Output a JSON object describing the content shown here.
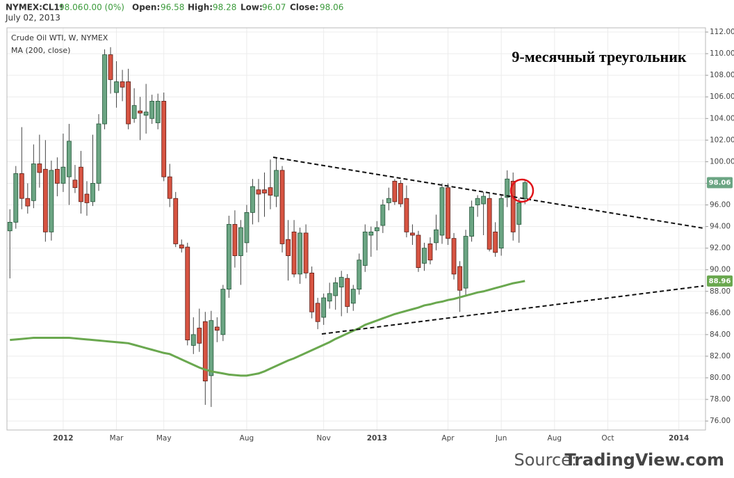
{
  "chart_data": {
    "type": "candlestick",
    "symbol": "NYMEX:CL1!",
    "change": "0.00 (0%)",
    "open_label": "Open:",
    "high_label": "High:",
    "low_label": "Low:",
    "close_label": "Close:",
    "date": "July 02, 2013",
    "title": "Crude Oil WTI, W, NYMEX",
    "annotation": "9-месячный треугольник",
    "source": "Source:",
    "source_site": "TradingView.com",
    "up_color": "#6ba583",
    "down_color": "#d75442",
    "grid": true,
    "ylim": [
      75.17,
      112.39
    ],
    "yticks": [
      {
        "value": 76,
        "label": "76.00"
      },
      {
        "value": 78,
        "label": "78.00"
      },
      {
        "value": 80,
        "label": "80.00"
      },
      {
        "value": 82,
        "label": "82.00"
      },
      {
        "value": 84,
        "label": "84.00"
      },
      {
        "value": 86,
        "label": "86.00"
      },
      {
        "value": 88,
        "label": "88.00"
      },
      {
        "value": 90,
        "label": "90.00"
      },
      {
        "value": 92,
        "label": "92.00"
      },
      {
        "value": 94,
        "label": "94.00"
      },
      {
        "value": 96,
        "label": "96.00"
      },
      {
        "value": 98,
        "label": "98.00"
      },
      {
        "value": 100,
        "label": "100.00"
      },
      {
        "value": 102,
        "label": "102.00"
      },
      {
        "value": 104,
        "label": "104.00"
      },
      {
        "value": 106,
        "label": "106.00"
      },
      {
        "value": 108,
        "label": "108.00"
      },
      {
        "value": 110,
        "label": "110.00"
      },
      {
        "value": 112,
        "label": "112.00"
      }
    ],
    "categories": [
      null,
      null,
      null,
      null,
      null,
      null,
      null,
      null,
      null,
      "2012",
      null,
      null,
      null,
      null,
      null,
      null,
      null,
      null,
      "Mar",
      null,
      null,
      null,
      null,
      null,
      null,
      null,
      "May",
      null,
      null,
      null,
      null,
      null,
      null,
      null,
      null,
      null,
      null,
      null,
      null,
      null,
      "Aug",
      null,
      null,
      null,
      null,
      null,
      null,
      null,
      null,
      null,
      null,
      null,
      null,
      "Nov",
      null,
      null,
      null,
      null,
      null,
      null,
      null,
      null,
      "2013",
      null,
      null,
      null,
      null,
      null,
      null,
      null,
      null,
      null,
      null,
      null,
      "Apr",
      null,
      null,
      null,
      null,
      null,
      null,
      null,
      null,
      "Jun",
      null,
      null,
      null,
      null,
      null,
      null,
      null,
      null,
      "Aug",
      null,
      null,
      null,
      null,
      null,
      null,
      null,
      null,
      "Oct",
      null,
      null,
      null,
      null,
      null,
      null,
      null,
      null,
      null,
      null,
      null,
      "2014",
      null,
      null,
      null,
      null
    ],
    "open": [
      93.6,
      94.4,
      98.9,
      96.6,
      96.4,
      99.8,
      99.3,
      93.5,
      99.3,
      98.0,
      98.6,
      98.3,
      99.5,
      97.0,
      96.3,
      98.0,
      103.5,
      109.9,
      106.4,
      107.4,
      107.4,
      104.0,
      104.7,
      104.3,
      104.0,
      103.6,
      105.6,
      98.6,
      96.6,
      92.3,
      92.1,
      83.0,
      84.6,
      85.2,
      80.2,
      84.7,
      84.0,
      88.2,
      94.2,
      91.3,
      92.5,
      95.3,
      97.4,
      97.4,
      97.6,
      96.8,
      99.2,
      92.8,
      93.5,
      89.6,
      93.4,
      89.7,
      86.9,
      85.6,
      87.1,
      87.6,
      88.4,
      89.2,
      86.9,
      88.2,
      90.4,
      93.2,
      93.6,
      94.1,
      96.2,
      98.2,
      98.0,
      96.6,
      93.4,
      93.2,
      90.6,
      92.4,
      92.5,
      93.2,
      97.6,
      92.9,
      90.3,
      88.3,
      93.1,
      96.0,
      96.1,
      96.6,
      93.5,
      92.0,
      96.7,
      98.2,
      94.2,
      96.58,
      null,
      null,
      null,
      null,
      null,
      null,
      null,
      null,
      null,
      null,
      null,
      null,
      null,
      null,
      null,
      null,
      null,
      null,
      null,
      null,
      null,
      null,
      null,
      null,
      null,
      null,
      null,
      null,
      null,
      null
    ],
    "high": [
      95.6,
      99.6,
      103.2,
      98.0,
      101.6,
      102.5,
      102.0,
      100.1,
      100.4,
      102.6,
      103.5,
      99.7,
      101.0,
      98.2,
      102.5,
      104.4,
      110.4,
      110.6,
      109.3,
      108.5,
      108.6,
      106.8,
      106.0,
      107.2,
      106.2,
      106.3,
      106.4,
      99.8,
      97.2,
      92.8,
      92.5,
      85.6,
      86.4,
      86.1,
      86.2,
      85.6,
      88.6,
      95.0,
      95.5,
      94.6,
      96.0,
      98.4,
      98.4,
      99.0,
      100.2,
      100.4,
      99.6,
      94.6,
      94.6,
      93.9,
      94.2,
      90.3,
      87.4,
      87.8,
      88.8,
      89.3,
      89.9,
      89.6,
      88.6,
      91.5,
      94.2,
      94.0,
      94.5,
      96.5,
      97.6,
      98.4,
      98.3,
      97.8,
      94.2,
      93.6,
      92.5,
      93.0,
      95.1,
      98.0,
      98.0,
      93.4,
      90.8,
      93.7,
      96.4,
      96.9,
      97.2,
      97.1,
      94.4,
      96.9,
      99.2,
      99.0,
      96.6,
      98.28,
      null,
      null,
      null,
      null,
      null,
      null,
      null,
      null,
      null,
      null,
      null,
      null,
      null,
      null,
      null,
      null,
      null,
      null,
      null,
      null,
      null,
      null,
      null,
      null,
      null,
      null,
      null,
      null,
      null,
      null
    ],
    "low": [
      89.2,
      93.8,
      95.6,
      95.2,
      95.7,
      97.6,
      92.6,
      92.7,
      96.8,
      97.2,
      96.0,
      97.1,
      95.2,
      95.0,
      95.9,
      97.3,
      103.0,
      106.3,
      105.0,
      105.6,
      103.0,
      103.6,
      102.0,
      102.6,
      103.5,
      103.0,
      98.2,
      95.8,
      92.1,
      91.6,
      83.0,
      82.2,
      82.4,
      77.5,
      77.3,
      83.3,
      83.4,
      87.4,
      90.2,
      88.6,
      91.6,
      94.2,
      94.4,
      94.9,
      95.6,
      95.8,
      91.6,
      89.0,
      89.3,
      88.7,
      89.2,
      85.5,
      84.5,
      84.9,
      86.4,
      86.3,
      85.7,
      86.0,
      86.2,
      87.7,
      89.8,
      91.2,
      91.8,
      93.4,
      95.5,
      96.0,
      95.8,
      93.0,
      92.3,
      89.8,
      89.9,
      90.5,
      91.8,
      92.4,
      92.3,
      89.1,
      86.1,
      87.5,
      92.6,
      94.9,
      93.2,
      91.7,
      91.2,
      91.3,
      95.8,
      92.7,
      92.5,
      96.07,
      null,
      null,
      null,
      null,
      null,
      null,
      null,
      null,
      null,
      null,
      null,
      null,
      null,
      null,
      null,
      null,
      null,
      null,
      null,
      null,
      null,
      null,
      null,
      null,
      null,
      null,
      null,
      null,
      null,
      null
    ],
    "close": [
      94.4,
      98.9,
      96.6,
      95.9,
      99.8,
      99.0,
      93.5,
      99.2,
      98.0,
      99.5,
      101.9,
      97.6,
      96.3,
      96.2,
      98.0,
      103.5,
      109.9,
      107.6,
      107.4,
      106.9,
      103.5,
      105.2,
      104.5,
      104.6,
      105.6,
      105.6,
      98.6,
      96.6,
      92.4,
      92.0,
      83.5,
      84.0,
      83.2,
      79.7,
      85.3,
      84.4,
      88.2,
      94.2,
      91.3,
      93.9,
      95.3,
      97.7,
      97.0,
      97.1,
      96.9,
      99.2,
      92.4,
      91.3,
      89.6,
      93.4,
      89.7,
      86.1,
      85.2,
      87.4,
      87.8,
      88.8,
      89.3,
      86.6,
      88.2,
      90.9,
      93.5,
      93.5,
      93.9,
      96.0,
      96.6,
      96.3,
      96.1,
      93.5,
      93.2,
      90.2,
      92.0,
      90.9,
      93.7,
      97.6,
      92.9,
      89.6,
      88.1,
      93.1,
      95.8,
      96.6,
      96.8,
      91.9,
      91.6,
      96.6,
      98.4,
      93.5,
      96.2,
      98.06,
      null,
      null,
      null,
      null,
      null,
      null,
      null,
      null,
      null,
      null,
      null,
      null,
      null,
      null,
      null,
      null,
      null,
      null,
      null,
      null,
      null,
      null,
      null,
      null,
      null,
      null,
      null,
      null,
      null,
      null
    ],
    "ma": {
      "name": "MA (200, close)",
      "color": "#6aa84f",
      "values": [
        83.5,
        83.55,
        83.6,
        83.65,
        83.7,
        83.7,
        83.7,
        83.7,
        83.7,
        83.7,
        83.7,
        83.65,
        83.6,
        83.55,
        83.5,
        83.45,
        83.4,
        83.35,
        83.3,
        83.25,
        83.2,
        83.05,
        82.9,
        82.75,
        82.6,
        82.45,
        82.3,
        82.2,
        81.95,
        81.7,
        81.45,
        81.2,
        80.95,
        80.75,
        80.6,
        80.5,
        80.4,
        80.3,
        80.25,
        80.2,
        80.2,
        80.3,
        80.4,
        80.6,
        80.85,
        81.1,
        81.35,
        81.6,
        81.8,
        82.05,
        82.3,
        82.55,
        82.8,
        83.05,
        83.3,
        83.6,
        83.85,
        84.1,
        84.35,
        84.6,
        84.9,
        85.1,
        85.3,
        85.5,
        85.7,
        85.9,
        86.05,
        86.2,
        86.35,
        86.5,
        86.7,
        86.8,
        86.95,
        87.05,
        87.2,
        87.3,
        87.45,
        87.6,
        87.75,
        87.9,
        88.0,
        88.15,
        88.3,
        88.45,
        88.6,
        88.75,
        88.85,
        88.96,
        null,
        null,
        null,
        null,
        null,
        null,
        null,
        null,
        null,
        null,
        null,
        null,
        null,
        null,
        null,
        null,
        null,
        null,
        null,
        null,
        null,
        null,
        null,
        null,
        null,
        null,
        null,
        null,
        null,
        null
      ]
    }
  }
}
